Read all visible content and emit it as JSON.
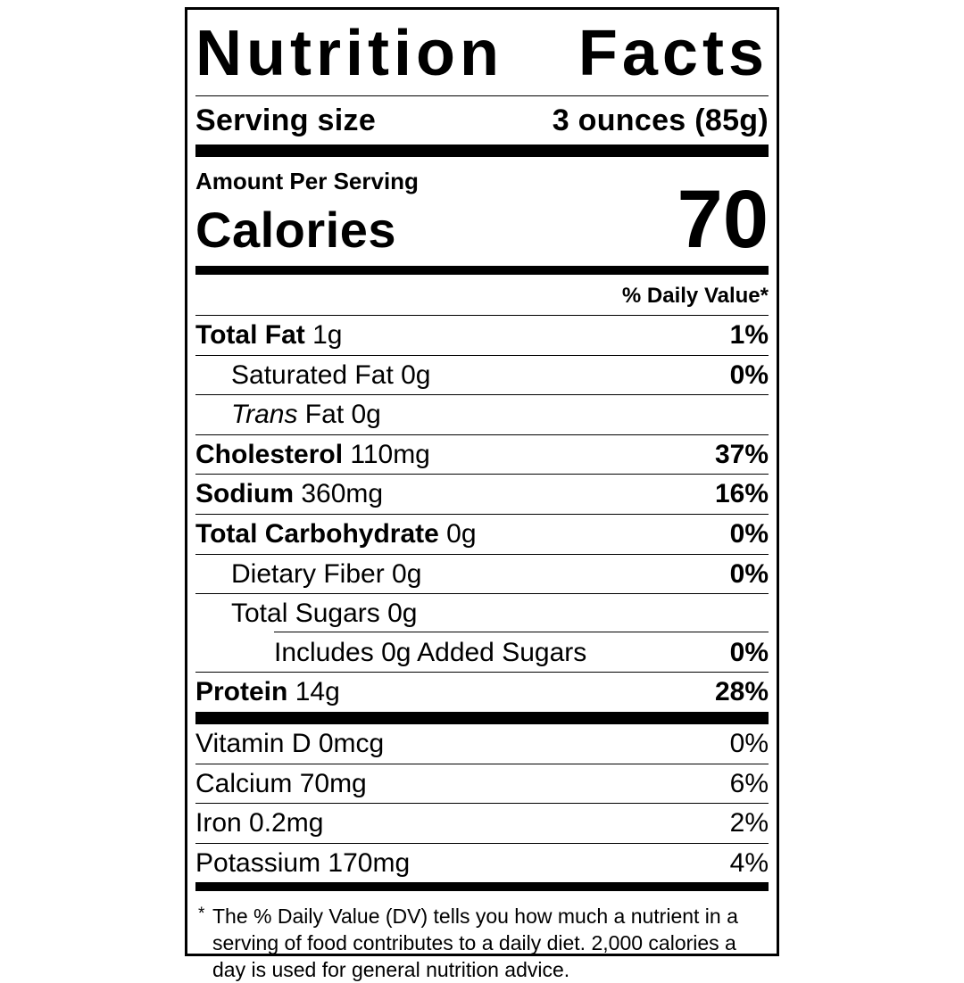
{
  "label": {
    "title": "Nutrition Facts",
    "serving": {
      "label": "Serving size",
      "value": "3 ounces (85g)"
    },
    "amount_per_serving": "Amount Per Serving",
    "calories": {
      "label": "Calories",
      "value": "70"
    },
    "daily_value_header": "% Daily Value*",
    "nutrients": [
      {
        "name": "Total Fat",
        "amount": "1g",
        "dv": "1%",
        "bold": true,
        "dv_bold": true,
        "indent": 0,
        "divider": "none"
      },
      {
        "name": "Saturated Fat",
        "amount": "0g",
        "dv": "0%",
        "bold": false,
        "dv_bold": true,
        "indent": 1,
        "divider": "full"
      },
      {
        "name": "Trans Fat",
        "amount": "0g",
        "italic_word": "Trans",
        "dv": "",
        "bold": false,
        "dv_bold": false,
        "indent": 1,
        "divider": "full"
      },
      {
        "name": "Cholesterol",
        "amount": "110mg",
        "dv": "37%",
        "bold": true,
        "dv_bold": true,
        "indent": 0,
        "divider": "full"
      },
      {
        "name": "Sodium",
        "amount": "360mg",
        "dv": "16%",
        "bold": true,
        "dv_bold": true,
        "indent": 0,
        "divider": "full"
      },
      {
        "name": "Total Carbohydrate",
        "amount": "0g",
        "dv": "0%",
        "bold": true,
        "dv_bold": true,
        "indent": 0,
        "divider": "full"
      },
      {
        "name": "Dietary Fiber",
        "amount": "0g",
        "dv": "0%",
        "bold": false,
        "dv_bold": true,
        "indent": 1,
        "divider": "full"
      },
      {
        "name": "Total Sugars",
        "amount": "0g",
        "dv": "",
        "bold": false,
        "dv_bold": false,
        "indent": 1,
        "divider": "full"
      },
      {
        "name": "Includes 0g Added Sugars",
        "amount": "",
        "dv": "0%",
        "bold": false,
        "dv_bold": true,
        "indent": 2,
        "divider": "indent"
      },
      {
        "name": "Protein",
        "amount": "14g",
        "dv": "28%",
        "bold": true,
        "dv_bold": true,
        "indent": 0,
        "divider": "full"
      }
    ],
    "vitamins": [
      {
        "name": "Vitamin D",
        "amount": "0mcg",
        "dv": "0%",
        "bold": false,
        "dv_bold": false,
        "indent": 0,
        "divider": "none"
      },
      {
        "name": "Calcium",
        "amount": "70mg",
        "dv": "6%",
        "bold": false,
        "dv_bold": false,
        "indent": 0,
        "divider": "full"
      },
      {
        "name": "Iron",
        "amount": "0.2mg",
        "dv": "2%",
        "bold": false,
        "dv_bold": false,
        "indent": 0,
        "divider": "full"
      },
      {
        "name": "Potassium",
        "amount": "170mg",
        "dv": "4%",
        "bold": false,
        "dv_bold": false,
        "indent": 0,
        "divider": "full"
      }
    ],
    "footnote": {
      "asterisk": "*",
      "text": "The % Daily Value (DV) tells you how much a nutrient in a serving of food contributes to a daily diet. 2,000 calories a day is used for general nutrition advice."
    },
    "colors": {
      "text": "#000000",
      "background": "#ffffff"
    }
  }
}
